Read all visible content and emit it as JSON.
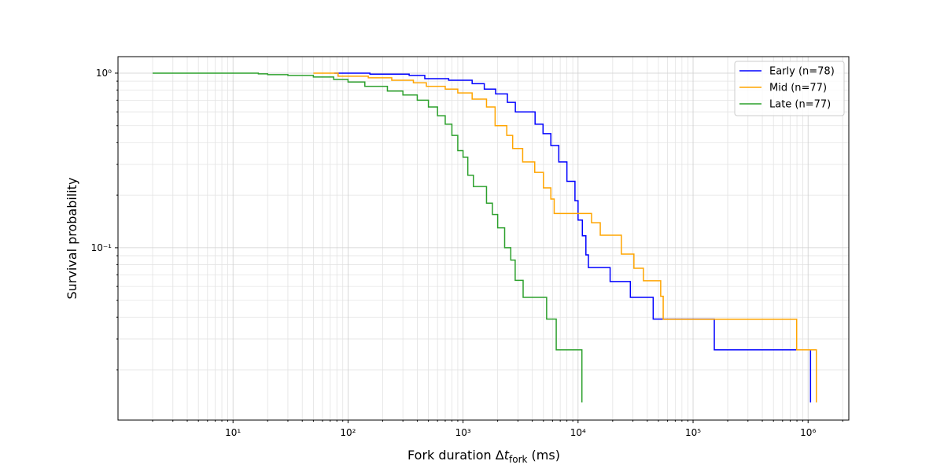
{
  "chart_data": {
    "type": "step",
    "xlabel": {
      "main": "Fork duration Δ",
      "var": "t",
      "sub": "fork",
      "unit": " (ms)"
    },
    "ylabel": "Survival probability",
    "xscale": "log",
    "yscale": "log",
    "xlim": [
      1,
      2260000
    ],
    "ylim": [
      0.0103,
      1.243
    ],
    "xticks": [
      {
        "value": 10,
        "label": "10¹"
      },
      {
        "value": 100,
        "label": "10²"
      },
      {
        "value": 1000,
        "label": "10³"
      },
      {
        "value": 10000,
        "label": "10⁴"
      },
      {
        "value": 100000,
        "label": "10⁵"
      },
      {
        "value": 1000000,
        "label": "10⁶"
      }
    ],
    "yticks": [
      {
        "value": 0.1,
        "label": "10⁻¹"
      },
      {
        "value": 1,
        "label": "10⁰"
      }
    ],
    "xminor": [
      2,
      3,
      4,
      5,
      6,
      7,
      8,
      9,
      20,
      30,
      40,
      50,
      60,
      70,
      80,
      90,
      200,
      300,
      400,
      500,
      600,
      700,
      800,
      900,
      2000,
      3000,
      4000,
      5000,
      6000,
      7000,
      8000,
      9000,
      20000,
      30000,
      40000,
      50000,
      60000,
      70000,
      80000,
      90000,
      200000,
      300000,
      400000,
      500000,
      600000,
      700000,
      800000,
      900000,
      2000000
    ],
    "yminor": [
      0.02,
      0.03,
      0.04,
      0.05,
      0.06,
      0.07,
      0.08,
      0.09,
      0.2,
      0.3,
      0.4,
      0.5,
      0.6,
      0.7,
      0.8,
      0.9
    ],
    "grid": true,
    "legend": "upper right",
    "series": [
      {
        "name": "Early (n=78)",
        "color": "#0000ff",
        "x": [
          76,
          155,
          340,
          465,
          750,
          1200,
          1530,
          1920,
          2430,
          2850,
          3900,
          4230,
          4960,
          5800,
          6800,
          8000,
          9400,
          10000,
          10900,
          11700,
          12300,
          19000,
          28500,
          45000,
          153000,
          1050000
        ],
        "values": [
          1.0,
          0.987,
          0.97,
          0.93,
          0.91,
          0.87,
          0.81,
          0.76,
          0.68,
          0.6,
          0.6,
          0.51,
          0.45,
          0.385,
          0.31,
          0.24,
          0.186,
          0.144,
          0.117,
          0.091,
          0.077,
          0.064,
          0.052,
          0.039,
          0.026,
          0.013
        ]
      },
      {
        "name": "Mid (n=77)",
        "color": "#ffa500",
        "x": [
          50,
          82,
          150,
          240,
          370,
          480,
          700,
          900,
          1200,
          1600,
          1900,
          2400,
          2700,
          3300,
          4200,
          5000,
          5800,
          6200,
          13100,
          15600,
          23800,
          30600,
          37000,
          52300,
          55000,
          796000,
          1180000
        ],
        "values": [
          1.0,
          0.96,
          0.94,
          0.91,
          0.88,
          0.84,
          0.81,
          0.77,
          0.71,
          0.64,
          0.5,
          0.44,
          0.37,
          0.31,
          0.27,
          0.22,
          0.19,
          0.157,
          0.139,
          0.118,
          0.092,
          0.0763,
          0.0647,
          0.0527,
          0.0389,
          0.026,
          0.013
        ]
      },
      {
        "name": "Late (n=77)",
        "color": "#2ca02c",
        "x": [
          2,
          16.6,
          20,
          30,
          50,
          75,
          100,
          140,
          220,
          300,
          400,
          500,
          600,
          700,
          800,
          900,
          1000,
          1100,
          1230,
          1600,
          1800,
          2000,
          2300,
          2600,
          2840,
          3330,
          5330,
          6460,
          10800
        ],
        "values": [
          1.0,
          0.99,
          0.98,
          0.97,
          0.95,
          0.92,
          0.89,
          0.84,
          0.79,
          0.75,
          0.7,
          0.64,
          0.57,
          0.51,
          0.44,
          0.36,
          0.33,
          0.26,
          0.224,
          0.18,
          0.155,
          0.13,
          0.1,
          0.085,
          0.065,
          0.052,
          0.039,
          0.026,
          0.013
        ]
      }
    ]
  }
}
